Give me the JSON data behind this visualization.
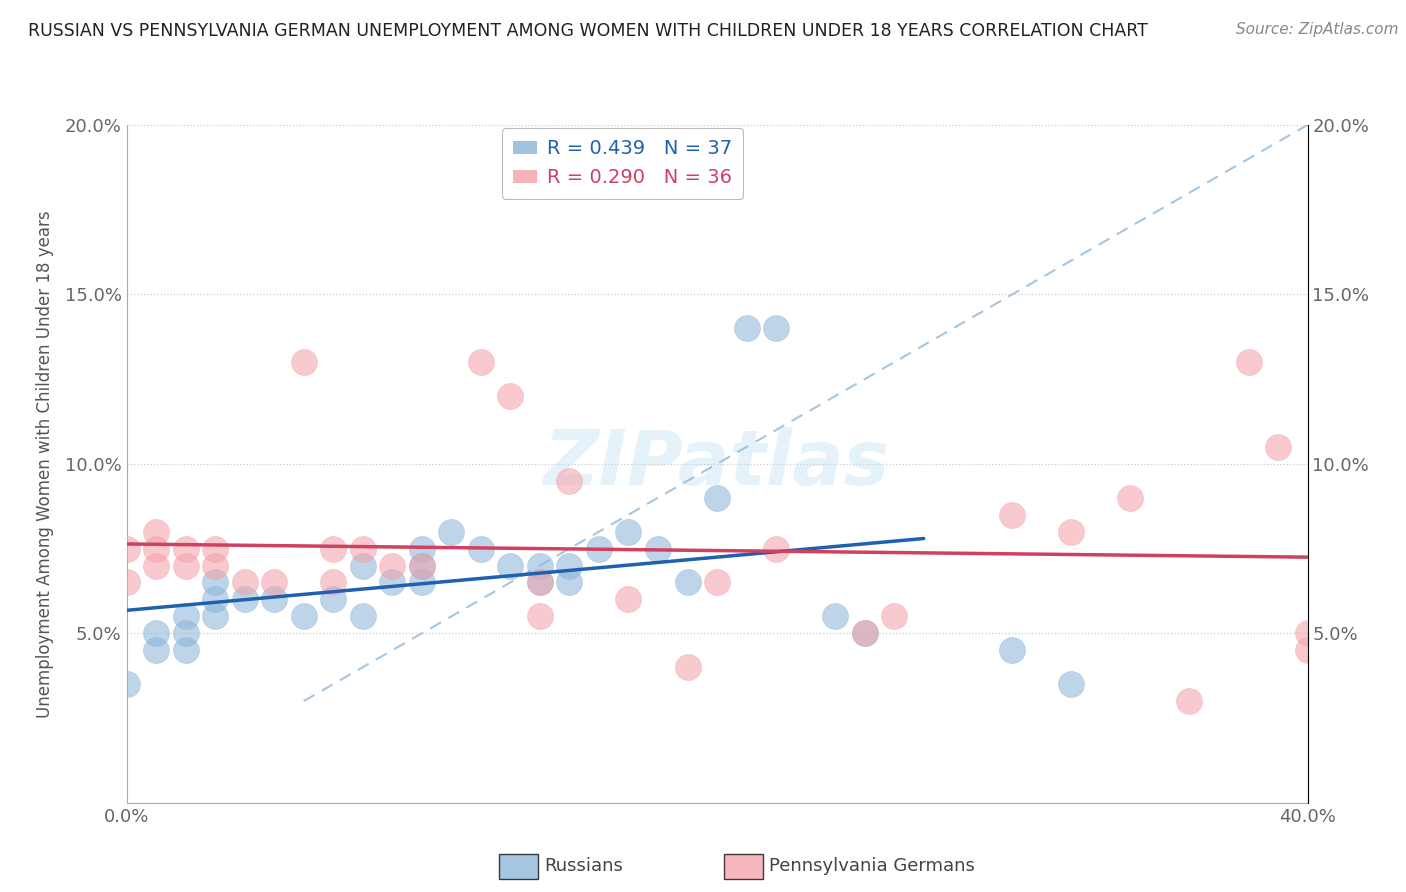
{
  "title": "RUSSIAN VS PENNSYLVANIA GERMAN UNEMPLOYMENT AMONG WOMEN WITH CHILDREN UNDER 18 YEARS CORRELATION CHART",
  "source": "Source: ZipAtlas.com",
  "ylabel": "Unemployment Among Women with Children Under 18 years",
  "xlabel_russians": "Russians",
  "xlabel_pagermans": "Pennsylvania Germans",
  "xlim": [
    0.0,
    0.4
  ],
  "ylim": [
    0.0,
    0.2
  ],
  "xtick_positions": [
    0.0,
    0.1,
    0.2,
    0.3,
    0.4
  ],
  "ytick_positions": [
    0.0,
    0.05,
    0.1,
    0.15,
    0.2
  ],
  "russian_R": 0.439,
  "russian_N": 37,
  "pagerman_R": 0.29,
  "pagerman_N": 36,
  "russian_color": "#8ab4d8",
  "pagerman_color": "#f4a0a8",
  "russian_line_color": "#2060b0",
  "pagerman_line_color": "#d04060",
  "diag_color": "#90b8d8",
  "watermark": "ZIPatlas",
  "russians_x": [
    0.0,
    0.01,
    0.01,
    0.02,
    0.02,
    0.02,
    0.03,
    0.03,
    0.03,
    0.04,
    0.05,
    0.06,
    0.07,
    0.08,
    0.08,
    0.09,
    0.1,
    0.1,
    0.1,
    0.11,
    0.12,
    0.13,
    0.14,
    0.14,
    0.15,
    0.15,
    0.16,
    0.17,
    0.18,
    0.19,
    0.2,
    0.21,
    0.22,
    0.24,
    0.25,
    0.3,
    0.32
  ],
  "russians_y": [
    0.035,
    0.045,
    0.05,
    0.045,
    0.05,
    0.055,
    0.055,
    0.06,
    0.065,
    0.06,
    0.06,
    0.055,
    0.06,
    0.055,
    0.07,
    0.065,
    0.07,
    0.065,
    0.075,
    0.08,
    0.075,
    0.07,
    0.065,
    0.07,
    0.065,
    0.07,
    0.075,
    0.08,
    0.075,
    0.065,
    0.09,
    0.14,
    0.14,
    0.055,
    0.05,
    0.045,
    0.035
  ],
  "pagermans_x": [
    0.0,
    0.0,
    0.01,
    0.01,
    0.01,
    0.02,
    0.02,
    0.03,
    0.03,
    0.04,
    0.05,
    0.06,
    0.07,
    0.07,
    0.08,
    0.09,
    0.1,
    0.12,
    0.13,
    0.14,
    0.14,
    0.15,
    0.17,
    0.19,
    0.2,
    0.22,
    0.25,
    0.26,
    0.3,
    0.32,
    0.34,
    0.36,
    0.38,
    0.39,
    0.4,
    0.4
  ],
  "pagermans_y": [
    0.065,
    0.075,
    0.07,
    0.075,
    0.08,
    0.07,
    0.075,
    0.07,
    0.075,
    0.065,
    0.065,
    0.13,
    0.065,
    0.075,
    0.075,
    0.07,
    0.07,
    0.13,
    0.12,
    0.065,
    0.055,
    0.095,
    0.06,
    0.04,
    0.065,
    0.075,
    0.05,
    0.055,
    0.085,
    0.08,
    0.09,
    0.03,
    0.13,
    0.105,
    0.05,
    0.045
  ]
}
